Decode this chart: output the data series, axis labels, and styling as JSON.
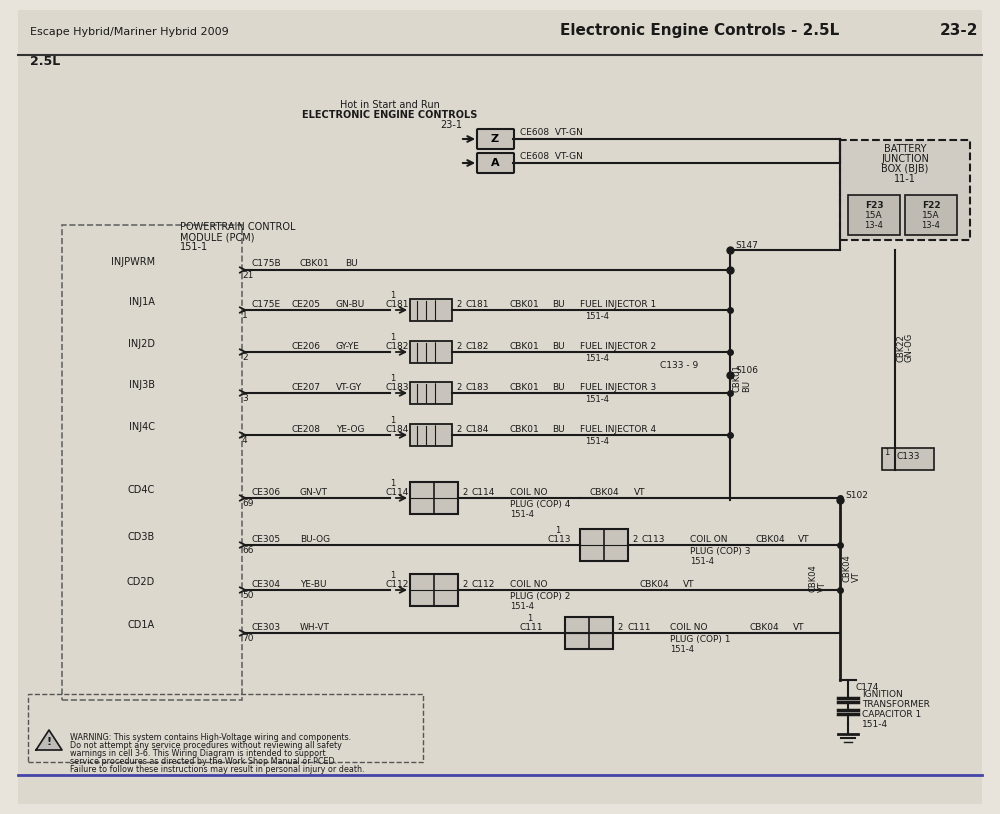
{
  "bg_color": "#e8e4dc",
  "page_bg": "#d4cfc5",
  "header_left": "Escape Hybrid/Mariner Hybrid 2009",
  "header_right": "Electronic Engine Controls - 2.5L",
  "header_page": "23-2",
  "subtitle": "2.5L",
  "hot_label1": "Hot in Start and Run",
  "hot_label2": "ELECTRONIC ENGINE CONTROLS",
  "hot_ref": "23-1",
  "pcm_label1": "POWERTRAIN CONTROL",
  "pcm_label2": "MODULE (PCM)",
  "pcm_label3": "151-1",
  "battery_label1": "BATTERY",
  "battery_label2": "JUNCTION",
  "battery_label3": "BOX (BJB)",
  "battery_label4": "11-1",
  "warning_text": "WARNING: This system contains High-Voltage wiring and components.\nDo not attempt any service procedures without reviewing all safety\nwarnings in cell 3-6. This Wiring Diagram is intended to support\nservice procedures as directed by the Work Shop Manual or PCED.\nFailure to follow these instructions may result in personal injury or death.",
  "line_color": "#1a1a1a",
  "box_color": "#c8c4bc",
  "dashed_box_color": "#555555",
  "text_color": "#1a1a1a",
  "fuse_fill": "#b8b4ac"
}
